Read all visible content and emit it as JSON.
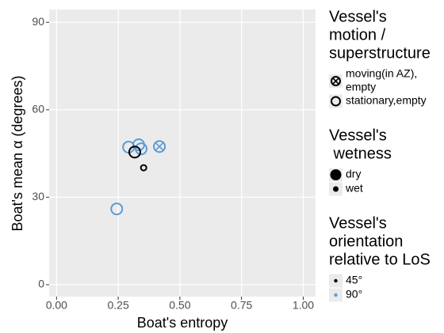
{
  "chart_data": {
    "type": "scatter",
    "x_label": "Boat's entropy",
    "y_label": "Boat's mean α (degrees)",
    "xlim": [
      -0.03,
      1.05
    ],
    "ylim": [
      -4.1,
      94.4
    ],
    "xticks": [
      {
        "value": 0,
        "label": "0.00"
      },
      {
        "value": 0.25,
        "label": "0.25"
      },
      {
        "value": 0.5,
        "label": "0.50"
      },
      {
        "value": 0.75,
        "label": "0.75"
      },
      {
        "value": 1,
        "label": "1.00"
      }
    ],
    "yticks": [
      0,
      30,
      60,
      90
    ],
    "grid": true,
    "series": [
      {
        "x": [
          0.244,
          0.292,
          0.333,
          0.343
        ],
        "values": [
          26.0,
          47.2,
          48.0,
          46.6
        ],
        "shape": "circle",
        "size": "large",
        "color": "#5a9bd5"
      },
      {
        "x": [
          0.417
        ],
        "values": [
          47.4
        ],
        "shape": "circle-x",
        "size": "large",
        "color": "#5a9bd5"
      },
      {
        "x": [
          0.317
        ],
        "values": [
          45.5
        ],
        "shape": "circle",
        "size": "large",
        "color": "#000000"
      },
      {
        "x": [
          0.353
        ],
        "values": [
          40.1
        ],
        "shape": "circle",
        "size": "small",
        "color": "#000000"
      }
    ],
    "legends": [
      {
        "title": [
          "Vessel's",
          "motion /",
          "superstructure"
        ],
        "entries": [
          {
            "label": [
              "moving(in AZ),",
              "empty"
            ],
            "shape": "circle-x",
            "size": "medium",
            "color": "#000000"
          },
          {
            "label": [
              "stationary,empty"
            ],
            "shape": "circle",
            "size": "medium",
            "color": "#000000"
          }
        ]
      },
      {
        "title": [
          "Vessel's",
          " wetness"
        ],
        "entries": [
          {
            "label": [
              "dry"
            ],
            "shape": "dot",
            "size": "large",
            "color": "#000000"
          },
          {
            "label": [
              "wet"
            ],
            "shape": "dot",
            "size": "small",
            "color": "#000000"
          }
        ]
      },
      {
        "title": [
          "Vessel's",
          "orientation",
          "relative to LoS"
        ],
        "entries": [
          {
            "label": [
              "45°"
            ],
            "shape": "dot",
            "size": "tiny",
            "color": "#000000"
          },
          {
            "label": [
              "90°"
            ],
            "shape": "dot",
            "size": "tiny",
            "color": "#5a9bd5"
          }
        ]
      }
    ]
  }
}
